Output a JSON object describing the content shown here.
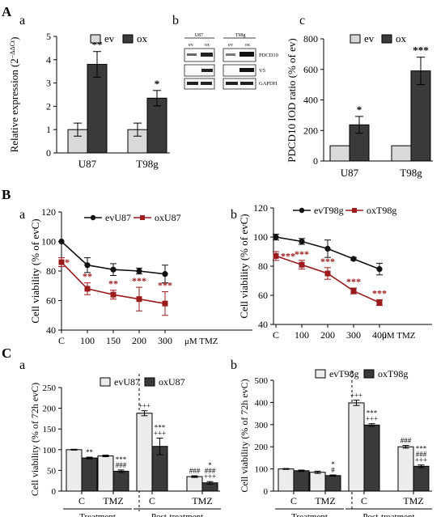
{
  "figure": {
    "section_labels": {
      "A": "A",
      "B": "B",
      "C": "C"
    },
    "panel_letters": {
      "Aa": "a",
      "Ab": "b",
      "Ac": "c",
      "Ba": "a",
      "Bb": "b",
      "Ca": "a",
      "Cb": "b"
    }
  },
  "blot": {
    "cell_lines": [
      "U87",
      "T98g"
    ],
    "lane_labels": [
      "ev",
      "ox",
      "ev",
      "ox"
    ],
    "proteins": [
      "PDCD10",
      "V5",
      "GAPDH"
    ]
  },
  "colors": {
    "ev": "#d9d9d9",
    "ox": "#3a3a3a",
    "evLine": "#111111",
    "oxLine": "#9b1c1c",
    "light": "#ececec"
  },
  "chart_data": [
    {
      "id": "Aa",
      "type": "bar",
      "categories": [
        "U87",
        "T98g"
      ],
      "series": [
        {
          "name": "ev",
          "values": [
            1.0,
            1.0
          ],
          "errors": [
            0.28,
            0.28
          ]
        },
        {
          "name": "ox",
          "values": [
            3.8,
            2.35
          ],
          "errors": [
            0.55,
            0.33
          ]
        }
      ],
      "ylabel": "Relative expression (2",
      "ylabel_sup": "−ΔΔCt",
      "ylabel_end": ")",
      "ylim": [
        0,
        5
      ],
      "yticks": [
        "0",
        "1",
        "2",
        "3",
        "4",
        "5"
      ],
      "sig": [
        null,
        null,
        "**",
        "*"
      ]
    },
    {
      "id": "Ac",
      "type": "bar",
      "categories": [
        "U87",
        "T98g"
      ],
      "series": [
        {
          "name": "ev",
          "values": [
            100,
            100
          ],
          "errors": [
            0,
            0
          ]
        },
        {
          "name": "ox",
          "values": [
            237,
            590
          ],
          "errors": [
            55,
            90
          ]
        }
      ],
      "ylabel": "PDCD10 IOD ratio (% of ev)",
      "ylim": [
        0,
        800
      ],
      "yticks": [
        "0",
        "200",
        "400",
        "600",
        "800"
      ],
      "sig": [
        null,
        null,
        "*",
        "***"
      ]
    },
    {
      "id": "Ba",
      "type": "line",
      "x": [
        "C",
        "100",
        "150",
        "200",
        "300"
      ],
      "x_unit": "μM TMZ",
      "series": [
        {
          "name": "evU87",
          "values": [
            100,
            84,
            81,
            80,
            78
          ],
          "errors": [
            0,
            5,
            4,
            2,
            6
          ]
        },
        {
          "name": "oxU87",
          "values": [
            86,
            68,
            64,
            61,
            58
          ],
          "errors": [
            3,
            4,
            3,
            8,
            8
          ]
        }
      ],
      "sig": [
        "*",
        "**",
        "**",
        "***",
        "***"
      ],
      "ylabel": "Cell viability (% of evC)",
      "ylim": [
        40,
        120
      ],
      "yticks": [
        "40",
        "60",
        "80",
        "100",
        "120"
      ]
    },
    {
      "id": "Bb",
      "type": "line",
      "x": [
        "C",
        "100",
        "200",
        "300",
        "400"
      ],
      "x_unit": "μM TMZ",
      "series": [
        {
          "name": "evT98g",
          "values": [
            100,
            97,
            92,
            85,
            78
          ],
          "errors": [
            2,
            2,
            6,
            1,
            4
          ]
        },
        {
          "name": "oxT98g",
          "values": [
            87,
            81,
            75,
            63,
            55
          ],
          "errors": [
            3,
            3,
            4,
            2,
            2
          ]
        }
      ],
      "sig": [
        "***",
        "***",
        "***",
        "***",
        "***"
      ],
      "ylabel": "Cell viability (% of evC)",
      "ylim": [
        40,
        120
      ],
      "yticks": [
        "40",
        "60",
        "80",
        "100",
        "120"
      ]
    },
    {
      "id": "Ca",
      "type": "bar",
      "categories": [
        "C",
        "TMZ",
        "C",
        "TMZ"
      ],
      "groups": [
        "Treatment",
        "Post-treatment"
      ],
      "series": [
        {
          "name": "evU87",
          "values": [
            100,
            85,
            188,
            35
          ],
          "errors": [
            1,
            2,
            6,
            2
          ]
        },
        {
          "name": "oxU87",
          "values": [
            80,
            48,
            108,
            20
          ],
          "errors": [
            2,
            3,
            20,
            3
          ]
        }
      ],
      "ev_marks": [
        "",
        "",
        "+++",
        "###"
      ],
      "ox_marks": [
        "**",
        "***\n###",
        "***\n+++",
        "*\n###\n+++"
      ],
      "ylabel": "Cell viability (% of 72h evC)",
      "ylim": [
        0,
        250
      ],
      "yticks": [
        "0",
        "50",
        "100",
        "150",
        "200",
        "250"
      ]
    },
    {
      "id": "Cb",
      "type": "bar",
      "categories": [
        "C",
        "TMZ",
        "C",
        "TMZ"
      ],
      "groups": [
        "Treatment",
        "Post-treatment"
      ],
      "series": [
        {
          "name": "evT98g",
          "values": [
            100,
            85,
            398,
            200
          ],
          "errors": [
            2,
            5,
            12,
            6
          ]
        },
        {
          "name": "oxT98g",
          "values": [
            92,
            70,
            298,
            112
          ],
          "errors": [
            3,
            3,
            6,
            6
          ]
        }
      ],
      "ev_marks": [
        "",
        "",
        "+++",
        "###"
      ],
      "ox_marks": [
        "",
        "*\n#",
        "***\n+++",
        "***\n###\n+++"
      ],
      "ylabel": "Cell viability (% of 72h evC)",
      "ylim": [
        0,
        500
      ],
      "yticks": [
        "0",
        "100",
        "200",
        "300",
        "400",
        "500"
      ]
    }
  ]
}
